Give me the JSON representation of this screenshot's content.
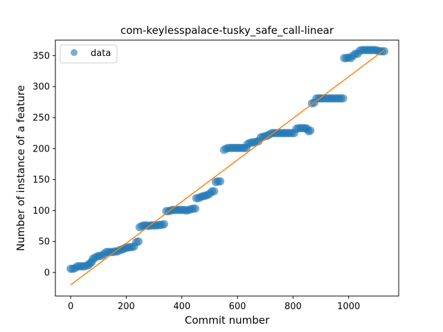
{
  "chart_data": {
    "type": "scatter",
    "title": "com-keylesspalace-tusky_safe_call-linear",
    "xlabel": "Commit number",
    "ylabel": "Number of instance of a feature",
    "xlim": [
      -55,
      1180
    ],
    "ylim": [
      -38,
      375
    ],
    "xticks": [
      0,
      200,
      400,
      600,
      800,
      1000
    ],
    "yticks": [
      0,
      50,
      100,
      150,
      200,
      250,
      300,
      350
    ],
    "grid": false,
    "legend": {
      "placement": "top-left",
      "entries": [
        "data"
      ]
    },
    "colors": {
      "data": "#1f77b4",
      "fit": "#ff7f0e"
    },
    "series": [
      {
        "name": "data",
        "kind": "scatter",
        "points": [
          [
            0,
            6
          ],
          [
            8,
            6
          ],
          [
            16,
            7
          ],
          [
            24,
            10
          ],
          [
            32,
            10
          ],
          [
            40,
            10
          ],
          [
            48,
            10
          ],
          [
            56,
            11
          ],
          [
            64,
            12
          ],
          [
            70,
            15
          ],
          [
            76,
            17
          ],
          [
            80,
            22
          ],
          [
            88,
            24
          ],
          [
            96,
            26
          ],
          [
            104,
            27
          ],
          [
            112,
            27
          ],
          [
            120,
            30
          ],
          [
            128,
            33
          ],
          [
            136,
            33
          ],
          [
            144,
            33
          ],
          [
            152,
            33
          ],
          [
            160,
            34
          ],
          [
            168,
            34
          ],
          [
            176,
            36
          ],
          [
            184,
            37
          ],
          [
            190,
            38
          ],
          [
            196,
            40
          ],
          [
            204,
            40
          ],
          [
            212,
            41
          ],
          [
            220,
            41
          ],
          [
            228,
            42
          ],
          [
            236,
            49
          ],
          [
            244,
            50
          ],
          [
            248,
            73
          ],
          [
            256,
            75
          ],
          [
            264,
            76
          ],
          [
            272,
            76
          ],
          [
            280,
            75
          ],
          [
            288,
            76
          ],
          [
            296,
            76
          ],
          [
            304,
            76
          ],
          [
            312,
            76
          ],
          [
            320,
            77
          ],
          [
            328,
            77
          ],
          [
            336,
            78
          ],
          [
            344,
            99
          ],
          [
            352,
            99
          ],
          [
            360,
            100
          ],
          [
            368,
            101
          ],
          [
            376,
            101
          ],
          [
            384,
            101
          ],
          [
            392,
            101
          ],
          [
            400,
            101
          ],
          [
            408,
            101
          ],
          [
            416,
            100
          ],
          [
            424,
            101
          ],
          [
            432,
            102
          ],
          [
            440,
            103
          ],
          [
            448,
            103
          ],
          [
            452,
            120
          ],
          [
            460,
            120
          ],
          [
            468,
            122
          ],
          [
            476,
            123
          ],
          [
            484,
            124
          ],
          [
            492,
            125
          ],
          [
            500,
            127
          ],
          [
            508,
            131
          ],
          [
            516,
            131
          ],
          [
            522,
            146
          ],
          [
            530,
            147
          ],
          [
            538,
            147
          ],
          [
            552,
            198
          ],
          [
            560,
            200
          ],
          [
            568,
            201
          ],
          [
            576,
            201
          ],
          [
            584,
            201
          ],
          [
            592,
            201
          ],
          [
            600,
            201
          ],
          [
            608,
            201
          ],
          [
            616,
            201
          ],
          [
            624,
            201
          ],
          [
            632,
            201
          ],
          [
            636,
            207
          ],
          [
            644,
            209
          ],
          [
            652,
            210
          ],
          [
            660,
            210
          ],
          [
            668,
            211
          ],
          [
            676,
            212
          ],
          [
            684,
            218
          ],
          [
            692,
            219
          ],
          [
            700,
            220
          ],
          [
            708,
            221
          ],
          [
            716,
            223
          ],
          [
            724,
            225
          ],
          [
            732,
            225
          ],
          [
            740,
            225
          ],
          [
            748,
            225
          ],
          [
            756,
            225
          ],
          [
            764,
            225
          ],
          [
            772,
            225
          ],
          [
            780,
            225
          ],
          [
            788,
            225
          ],
          [
            796,
            225
          ],
          [
            804,
            225
          ],
          [
            812,
            232
          ],
          [
            820,
            233
          ],
          [
            828,
            233
          ],
          [
            836,
            233
          ],
          [
            844,
            233
          ],
          [
            850,
            232
          ],
          [
            856,
            228
          ],
          [
            862,
            229
          ],
          [
            868,
            273
          ],
          [
            876,
            274
          ],
          [
            884,
            281
          ],
          [
            892,
            281
          ],
          [
            900,
            281
          ],
          [
            908,
            281
          ],
          [
            916,
            281
          ],
          [
            924,
            281
          ],
          [
            932,
            281
          ],
          [
            940,
            281
          ],
          [
            948,
            281
          ],
          [
            956,
            281
          ],
          [
            964,
            281
          ],
          [
            972,
            281
          ],
          [
            980,
            281
          ],
          [
            984,
            346
          ],
          [
            992,
            346
          ],
          [
            1000,
            347
          ],
          [
            1008,
            346
          ],
          [
            1016,
            350
          ],
          [
            1024,
            353
          ],
          [
            1032,
            353
          ],
          [
            1040,
            358
          ],
          [
            1048,
            359
          ],
          [
            1056,
            359
          ],
          [
            1064,
            359
          ],
          [
            1072,
            359
          ],
          [
            1080,
            359
          ],
          [
            1088,
            359
          ],
          [
            1096,
            359
          ],
          [
            1104,
            358
          ],
          [
            1112,
            357
          ],
          [
            1120,
            357
          ],
          [
            1128,
            357
          ]
        ]
      },
      {
        "name": "",
        "kind": "line",
        "points": [
          [
            0,
            -20
          ],
          [
            1128,
            359
          ]
        ]
      }
    ]
  }
}
